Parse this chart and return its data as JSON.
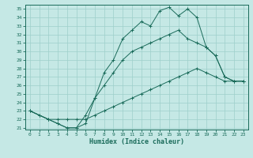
{
  "xlabel": "Humidex (Indice chaleur)",
  "background_color": "#c5e8e5",
  "grid_color": "#9ecfca",
  "line_color": "#1a6b5a",
  "xlim": [
    -0.5,
    23.5
  ],
  "ylim": [
    20.8,
    35.5
  ],
  "x_ticks": [
    0,
    1,
    2,
    3,
    4,
    5,
    6,
    7,
    8,
    9,
    10,
    11,
    12,
    13,
    14,
    15,
    16,
    17,
    18,
    19,
    20,
    21,
    22,
    23
  ],
  "y_ticks": [
    21,
    22,
    23,
    24,
    25,
    26,
    27,
    28,
    29,
    30,
    31,
    32,
    33,
    34,
    35
  ],
  "line1_x": [
    0,
    1,
    2,
    3,
    4,
    5,
    6,
    7,
    8,
    9,
    10,
    11,
    12,
    13,
    14,
    15,
    16,
    17,
    18,
    19,
    20,
    21,
    22,
    23
  ],
  "line1_y": [
    23.0,
    22.5,
    22.0,
    21.5,
    21.0,
    21.0,
    21.5,
    24.5,
    27.5,
    29.0,
    31.5,
    32.5,
    33.5,
    33.0,
    34.8,
    35.2,
    34.2,
    35.0,
    34.0,
    30.5,
    29.5,
    27.0,
    26.5,
    26.5
  ],
  "line2_x": [
    0,
    2,
    3,
    4,
    5,
    6,
    7,
    8,
    9,
    10,
    11,
    12,
    13,
    14,
    15,
    16,
    17,
    18,
    19,
    20,
    21,
    22,
    23
  ],
  "line2_y": [
    23.0,
    22.0,
    21.5,
    21.0,
    21.0,
    22.5,
    24.5,
    26.0,
    27.5,
    29.0,
    30.0,
    30.5,
    31.0,
    31.5,
    32.0,
    32.5,
    31.5,
    31.0,
    30.5,
    29.5,
    27.0,
    26.5,
    26.5
  ],
  "line3_x": [
    0,
    1,
    2,
    3,
    4,
    5,
    6,
    7,
    8,
    9,
    10,
    11,
    12,
    13,
    14,
    15,
    16,
    17,
    18,
    19,
    20,
    21,
    22,
    23
  ],
  "line3_y": [
    23.0,
    22.5,
    22.0,
    22.0,
    22.0,
    22.0,
    22.0,
    22.5,
    23.0,
    23.5,
    24.0,
    24.5,
    25.0,
    25.5,
    26.0,
    26.5,
    27.0,
    27.5,
    28.0,
    27.5,
    27.0,
    26.5,
    26.5,
    26.5
  ]
}
